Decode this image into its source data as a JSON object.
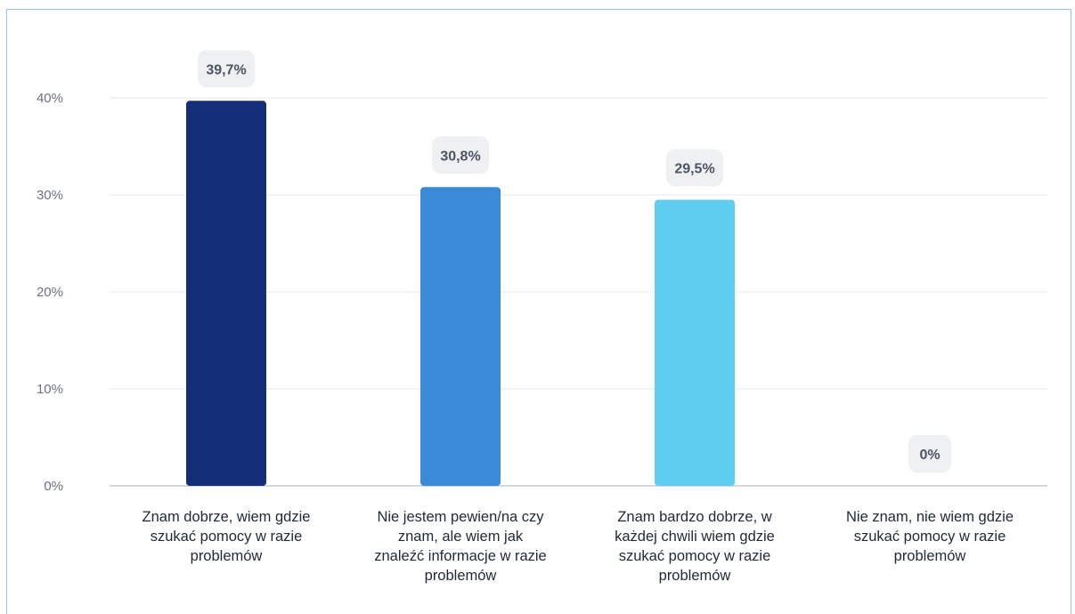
{
  "chart_data": {
    "type": "bar",
    "title": "",
    "xlabel": "",
    "ylabel": "",
    "ylim": [
      0,
      40
    ],
    "y_ticks": [
      "0%",
      "10%",
      "20%",
      "30%",
      "40%"
    ],
    "y_tick_values": [
      0,
      10,
      20,
      30,
      40
    ],
    "grid": true,
    "legend": "none",
    "categories": [
      [
        "Znam dobrze, wiem gdzie",
        "szukać pomocy w razie",
        "problemów"
      ],
      [
        "Nie jestem pewien/na czy",
        "znam, ale wiem jak",
        "znaleźć informacje w razie",
        "problemów"
      ],
      [
        "Znam bardzo dobrze, w",
        "każdej chwili wiem gdzie",
        "szukać pomocy w razie",
        "problemów"
      ],
      [
        "Nie znam, nie wiem gdzie",
        "szukać pomocy w razie",
        "problemów"
      ]
    ],
    "values": [
      39.7,
      30.8,
      29.5,
      0
    ],
    "data_labels": [
      "39,7%",
      "30,8%",
      "29,5%",
      "0%"
    ],
    "colors": [
      "#142e7a",
      "#3a8ad7",
      "#5ecdf0",
      "#5ecdf0"
    ]
  }
}
